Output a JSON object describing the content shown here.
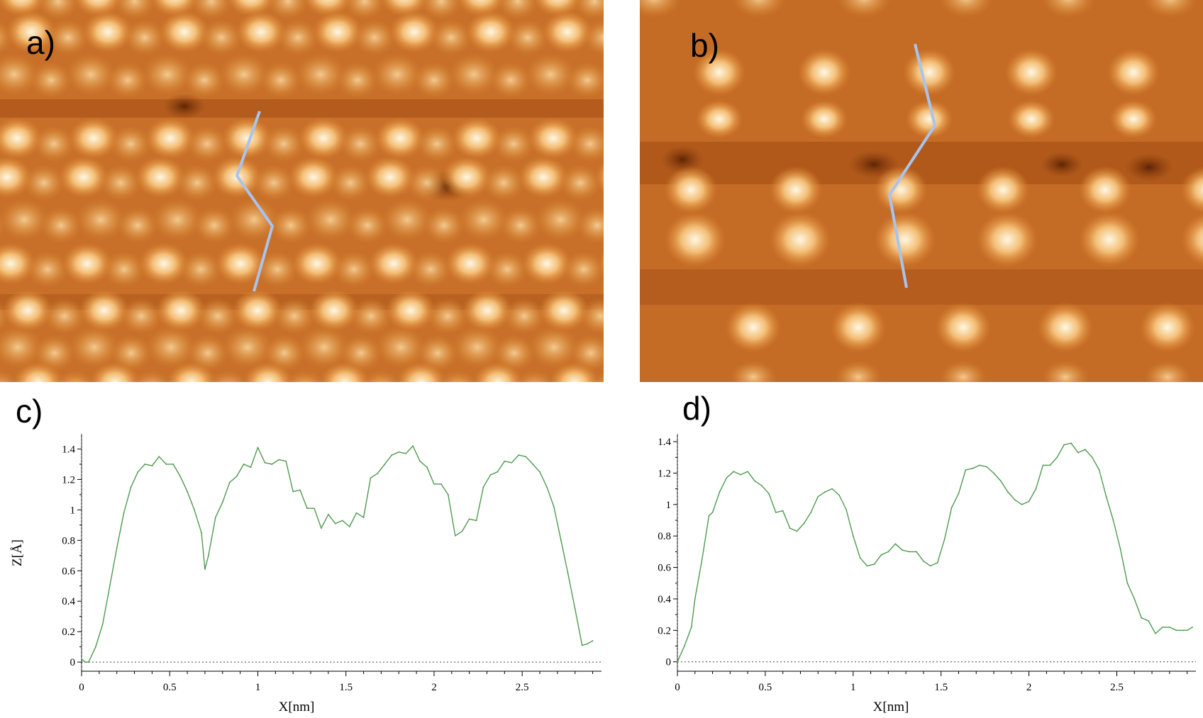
{
  "panels": {
    "a": "a)",
    "b": "b)",
    "c": "c)",
    "d": "d)"
  },
  "colors": {
    "stm_dark": "#8a3a08",
    "stm_mid": "#d07a2a",
    "stm_light": "#fff3d6",
    "trace": "#a8c4ee",
    "profile": "#4f9a4f"
  },
  "chart_data": [
    {
      "type": "line",
      "panel": "c)",
      "xlabel": "X[nm]",
      "ylabel": "Z[Å]",
      "xlim": [
        0,
        2.95
      ],
      "ylim": [
        -0.06,
        1.5
      ],
      "xticks": [
        0,
        0.5,
        1,
        1.5,
        2,
        2.5
      ],
      "xtick_labels": [
        "0",
        "0.5",
        "1",
        "1.5",
        "2",
        "2.5"
      ],
      "yticks": [
        0,
        0.2,
        0.4,
        0.6,
        0.8,
        1,
        1.2,
        1.4
      ],
      "ytick_labels": [
        "0",
        "0.2",
        "0.4",
        "0.6",
        "0.8",
        "1",
        "1.2",
        "1.4"
      ],
      "x": [
        0,
        0.02,
        0.04,
        0.08,
        0.12,
        0.16,
        0.2,
        0.24,
        0.28,
        0.32,
        0.36,
        0.4,
        0.44,
        0.48,
        0.52,
        0.56,
        0.6,
        0.64,
        0.68,
        0.7,
        0.72,
        0.76,
        0.8,
        0.84,
        0.88,
        0.92,
        0.96,
        1.0,
        1.04,
        1.08,
        1.12,
        1.16,
        1.2,
        1.24,
        1.28,
        1.32,
        1.36,
        1.4,
        1.44,
        1.48,
        1.52,
        1.56,
        1.6,
        1.64,
        1.68,
        1.72,
        1.76,
        1.8,
        1.84,
        1.88,
        1.92,
        1.96,
        2.0,
        2.04,
        2.08,
        2.12,
        2.16,
        2.2,
        2.24,
        2.28,
        2.32,
        2.36,
        2.4,
        2.44,
        2.48,
        2.52,
        2.56,
        2.6,
        2.64,
        2.68,
        2.72,
        2.76,
        2.8,
        2.84,
        2.87,
        2.9
      ],
      "y": [
        0.02,
        0.0,
        0.0,
        0.1,
        0.25,
        0.5,
        0.75,
        0.98,
        1.15,
        1.25,
        1.3,
        1.29,
        1.35,
        1.3,
        1.3,
        1.22,
        1.12,
        1.0,
        0.85,
        0.61,
        0.7,
        0.95,
        1.05,
        1.18,
        1.22,
        1.3,
        1.28,
        1.41,
        1.31,
        1.3,
        1.33,
        1.32,
        1.12,
        1.13,
        1.01,
        1.01,
        0.88,
        0.97,
        0.91,
        0.93,
        0.89,
        0.98,
        0.95,
        1.21,
        1.24,
        1.3,
        1.36,
        1.38,
        1.37,
        1.42,
        1.32,
        1.28,
        1.17,
        1.17,
        1.1,
        0.83,
        0.86,
        0.94,
        0.93,
        1.15,
        1.23,
        1.25,
        1.32,
        1.31,
        1.36,
        1.35,
        1.3,
        1.25,
        1.15,
        1.02,
        0.8,
        0.58,
        0.35,
        0.11,
        0.12,
        0.14
      ]
    },
    {
      "type": "line",
      "panel": "d)",
      "xlabel": "X[nm]",
      "ylabel": "",
      "xlim": [
        0,
        2.95
      ],
      "ylim": [
        -0.06,
        1.45
      ],
      "xticks": [
        0,
        0.5,
        1,
        1.5,
        2,
        2.5
      ],
      "xtick_labels": [
        "0",
        "0.5",
        "1",
        "1.5",
        "2",
        "2.5"
      ],
      "yticks": [
        0,
        0.2,
        0.4,
        0.6,
        0.8,
        1,
        1.2,
        1.4
      ],
      "ytick_labels": [
        "0",
        "0.2",
        "0.4",
        "0.6",
        "0.8",
        "1",
        "1.2",
        "1.4"
      ],
      "x": [
        0,
        0.04,
        0.08,
        0.1,
        0.14,
        0.18,
        0.2,
        0.24,
        0.28,
        0.32,
        0.36,
        0.4,
        0.44,
        0.48,
        0.52,
        0.56,
        0.6,
        0.64,
        0.68,
        0.72,
        0.76,
        0.8,
        0.84,
        0.88,
        0.92,
        0.96,
        1.0,
        1.04,
        1.08,
        1.12,
        1.16,
        1.2,
        1.24,
        1.28,
        1.32,
        1.36,
        1.4,
        1.44,
        1.48,
        1.52,
        1.56,
        1.6,
        1.64,
        1.68,
        1.72,
        1.76,
        1.8,
        1.84,
        1.88,
        1.92,
        1.96,
        2.0,
        2.04,
        2.08,
        2.12,
        2.16,
        2.2,
        2.24,
        2.28,
        2.32,
        2.36,
        2.4,
        2.44,
        2.48,
        2.52,
        2.56,
        2.6,
        2.64,
        2.68,
        2.72,
        2.76,
        2.8,
        2.84,
        2.88,
        2.9,
        2.93
      ],
      "y": [
        0.0,
        0.1,
        0.22,
        0.4,
        0.65,
        0.93,
        0.95,
        1.08,
        1.17,
        1.21,
        1.19,
        1.21,
        1.15,
        1.12,
        1.07,
        0.95,
        0.96,
        0.85,
        0.83,
        0.88,
        0.95,
        1.05,
        1.08,
        1.1,
        1.06,
        0.97,
        0.8,
        0.66,
        0.61,
        0.62,
        0.68,
        0.7,
        0.75,
        0.71,
        0.7,
        0.7,
        0.64,
        0.61,
        0.63,
        0.78,
        0.98,
        1.07,
        1.22,
        1.23,
        1.25,
        1.24,
        1.2,
        1.15,
        1.08,
        1.03,
        1.0,
        1.02,
        1.1,
        1.25,
        1.25,
        1.3,
        1.38,
        1.39,
        1.33,
        1.35,
        1.3,
        1.22,
        1.05,
        0.9,
        0.72,
        0.5,
        0.4,
        0.28,
        0.26,
        0.18,
        0.22,
        0.22,
        0.2,
        0.2,
        0.2,
        0.22
      ]
    }
  ]
}
